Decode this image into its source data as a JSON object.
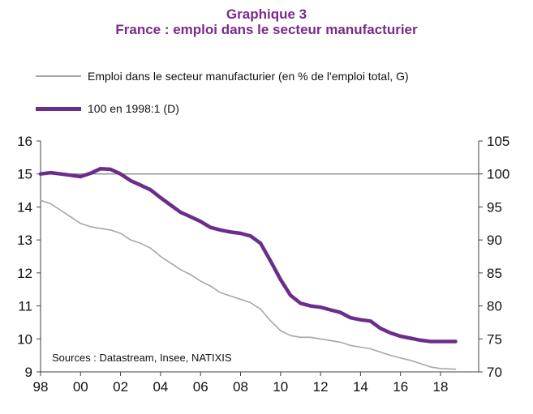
{
  "header": {
    "title_line1": "Graphique 3",
    "title_line2": "France : emploi dans le secteur manufacturier"
  },
  "colors": {
    "title": "#7a2a8a",
    "series_left": "#a6a6a6",
    "series_right": "#6a2d8c",
    "reference_line": "#7f7f7f",
    "axis": "#404040"
  },
  "chart_data": {
    "type": "line",
    "grid": false,
    "legend_position": "top-left",
    "x_ticks": [
      "98",
      "00",
      "02",
      "04",
      "06",
      "08",
      "10",
      "12",
      "14",
      "16",
      "18"
    ],
    "x_range": [
      1998.0,
      2020.0
    ],
    "y_left": {
      "range": [
        9,
        16
      ],
      "ticks": [
        "9",
        "10",
        "11",
        "12",
        "13",
        "14",
        "15",
        "16"
      ]
    },
    "y_right": {
      "range": [
        70,
        105
      ],
      "ticks": [
        "70",
        "75",
        "80",
        "85",
        "90",
        "95",
        "100",
        "105"
      ]
    },
    "reference_line": {
      "axis": "right",
      "value": 100
    },
    "source_note": "Sources : Datastream, Insee, NATIXIS",
    "series": [
      {
        "name": "Emploi dans le secteur manufacturier (en % de l'emploi total, G)",
        "axis": "left",
        "points": [
          [
            1998.0,
            14.2
          ],
          [
            1998.5,
            14.1
          ],
          [
            1999.0,
            13.9
          ],
          [
            1999.5,
            13.7
          ],
          [
            2000.0,
            13.5
          ],
          [
            2000.5,
            13.4
          ],
          [
            2001.0,
            13.35
          ],
          [
            2001.5,
            13.3
          ],
          [
            2002.0,
            13.2
          ],
          [
            2002.5,
            13.0
          ],
          [
            2003.0,
            12.9
          ],
          [
            2003.5,
            12.75
          ],
          [
            2004.0,
            12.5
          ],
          [
            2004.5,
            12.3
          ],
          [
            2005.0,
            12.1
          ],
          [
            2005.5,
            11.95
          ],
          [
            2006.0,
            11.75
          ],
          [
            2006.5,
            11.6
          ],
          [
            2007.0,
            11.4
          ],
          [
            2007.5,
            11.3
          ],
          [
            2008.0,
            11.2
          ],
          [
            2008.5,
            11.1
          ],
          [
            2009.0,
            10.9
          ],
          [
            2009.5,
            10.55
          ],
          [
            2010.0,
            10.25
          ],
          [
            2010.5,
            10.1
          ],
          [
            2011.0,
            10.05
          ],
          [
            2011.5,
            10.05
          ],
          [
            2012.0,
            10.0
          ],
          [
            2012.5,
            9.95
          ],
          [
            2013.0,
            9.9
          ],
          [
            2013.5,
            9.8
          ],
          [
            2014.0,
            9.75
          ],
          [
            2014.5,
            9.7
          ],
          [
            2015.0,
            9.6
          ],
          [
            2015.5,
            9.5
          ],
          [
            2016.0,
            9.42
          ],
          [
            2016.5,
            9.35
          ],
          [
            2017.0,
            9.25
          ],
          [
            2017.5,
            9.15
          ],
          [
            2018.0,
            9.1
          ],
          [
            2018.75,
            9.08
          ]
        ]
      },
      {
        "name": "100 en 1998:1 (D)",
        "axis": "right",
        "points": [
          [
            1998.0,
            100.0
          ],
          [
            1998.5,
            100.2
          ],
          [
            1999.0,
            100.0
          ],
          [
            1999.5,
            99.8
          ],
          [
            2000.0,
            99.6
          ],
          [
            2000.5,
            100.1
          ],
          [
            2001.0,
            100.8
          ],
          [
            2001.5,
            100.7
          ],
          [
            2002.0,
            100.0
          ],
          [
            2002.5,
            99.0
          ],
          [
            2003.0,
            98.3
          ],
          [
            2003.5,
            97.6
          ],
          [
            2004.0,
            96.4
          ],
          [
            2004.5,
            95.3
          ],
          [
            2005.0,
            94.2
          ],
          [
            2005.5,
            93.5
          ],
          [
            2006.0,
            92.8
          ],
          [
            2006.5,
            91.9
          ],
          [
            2007.0,
            91.5
          ],
          [
            2007.5,
            91.2
          ],
          [
            2008.0,
            91.0
          ],
          [
            2008.5,
            90.6
          ],
          [
            2009.0,
            89.5
          ],
          [
            2009.5,
            86.8
          ],
          [
            2010.0,
            84.0
          ],
          [
            2010.5,
            81.6
          ],
          [
            2011.0,
            80.4
          ],
          [
            2011.5,
            80.0
          ],
          [
            2012.0,
            79.8
          ],
          [
            2012.5,
            79.4
          ],
          [
            2013.0,
            79.0
          ],
          [
            2013.5,
            78.2
          ],
          [
            2014.0,
            77.9
          ],
          [
            2014.5,
            77.7
          ],
          [
            2015.0,
            76.6
          ],
          [
            2015.5,
            75.9
          ],
          [
            2016.0,
            75.4
          ],
          [
            2016.5,
            75.1
          ],
          [
            2017.0,
            74.8
          ],
          [
            2017.5,
            74.6
          ],
          [
            2018.0,
            74.6
          ],
          [
            2018.75,
            74.6
          ]
        ]
      }
    ]
  }
}
